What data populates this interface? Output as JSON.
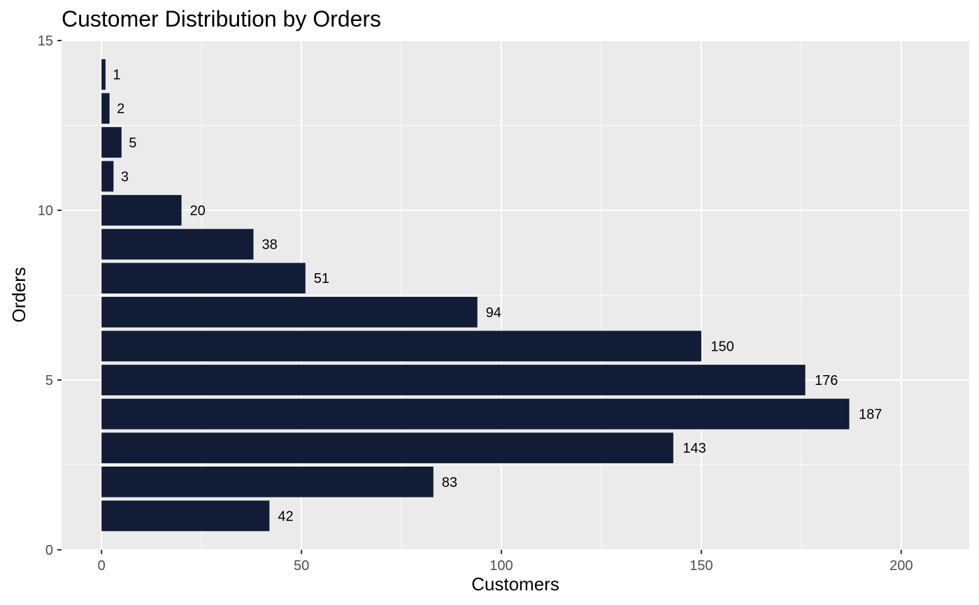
{
  "chart_data": {
    "type": "bar",
    "orientation": "horizontal",
    "title": "Customer Distribution by Orders",
    "xlabel": "Customers",
    "ylabel": "Orders",
    "x": [
      1,
      2,
      3,
      4,
      5,
      6,
      7,
      8,
      9,
      10,
      11,
      12,
      13,
      14
    ],
    "values": [
      42,
      83,
      143,
      187,
      176,
      150,
      94,
      51,
      38,
      20,
      3,
      5,
      2,
      1
    ],
    "data_labels": [
      "42",
      "83",
      "143",
      "187",
      "176",
      "150",
      "94",
      "51",
      "38",
      "20",
      "3",
      "5",
      "2",
      "1"
    ],
    "xlim": [
      -10,
      217
    ],
    "ylim": [
      0,
      15
    ],
    "x_ticks": [
      0,
      50,
      100,
      150,
      200
    ],
    "x_tick_labels": [
      "0",
      "50",
      "100",
      "150",
      "200"
    ],
    "y_ticks": [
      0,
      5,
      10,
      15
    ],
    "y_tick_labels": [
      "0",
      "5",
      "10",
      "15"
    ],
    "grid": true,
    "legend": "none",
    "colors": {
      "bar": "#111C36",
      "panel_background": "#EBEBEB",
      "grid_major": "#FFFFFF",
      "tick_label": "#4D4D4D"
    }
  }
}
